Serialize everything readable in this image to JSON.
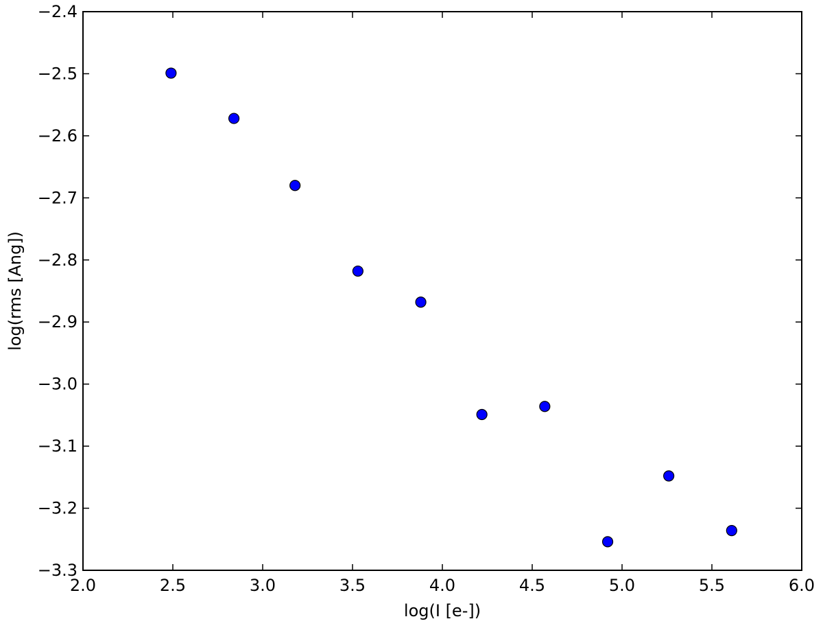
{
  "chart_data": {
    "type": "scatter",
    "title": "",
    "xlabel": "log(I [e-])",
    "ylabel": "log(rms [Ang])",
    "xlim": [
      2.0,
      6.0
    ],
    "ylim": [
      -3.3,
      -2.4
    ],
    "xticks": [
      2.0,
      2.5,
      3.0,
      3.5,
      4.0,
      4.5,
      5.0,
      5.5,
      6.0
    ],
    "yticks": [
      -2.4,
      -2.5,
      -2.6,
      -2.7,
      -2.8,
      -2.9,
      -3.0,
      -3.1,
      -3.2,
      -3.3
    ],
    "xtick_labels": [
      "2.0",
      "2.5",
      "3.0",
      "3.5",
      "4.0",
      "4.5",
      "5.0",
      "5.5",
      "6.0"
    ],
    "ytick_labels": [
      "−2.4",
      "−2.5",
      "−2.6",
      "−2.7",
      "−2.8",
      "−2.9",
      "−3.0",
      "−3.1",
      "−3.2",
      "−3.3"
    ],
    "grid": false,
    "legend": "none",
    "marker_color": "#0000ff",
    "marker_edge_color": "#000000",
    "points": [
      {
        "x": 2.49,
        "y": -2.499
      },
      {
        "x": 2.84,
        "y": -2.572
      },
      {
        "x": 3.18,
        "y": -2.68
      },
      {
        "x": 3.53,
        "y": -2.818
      },
      {
        "x": 3.88,
        "y": -2.868
      },
      {
        "x": 4.22,
        "y": -3.049
      },
      {
        "x": 4.57,
        "y": -3.036
      },
      {
        "x": 4.92,
        "y": -3.254
      },
      {
        "x": 5.26,
        "y": -3.148
      },
      {
        "x": 5.61,
        "y": -3.236
      }
    ]
  }
}
